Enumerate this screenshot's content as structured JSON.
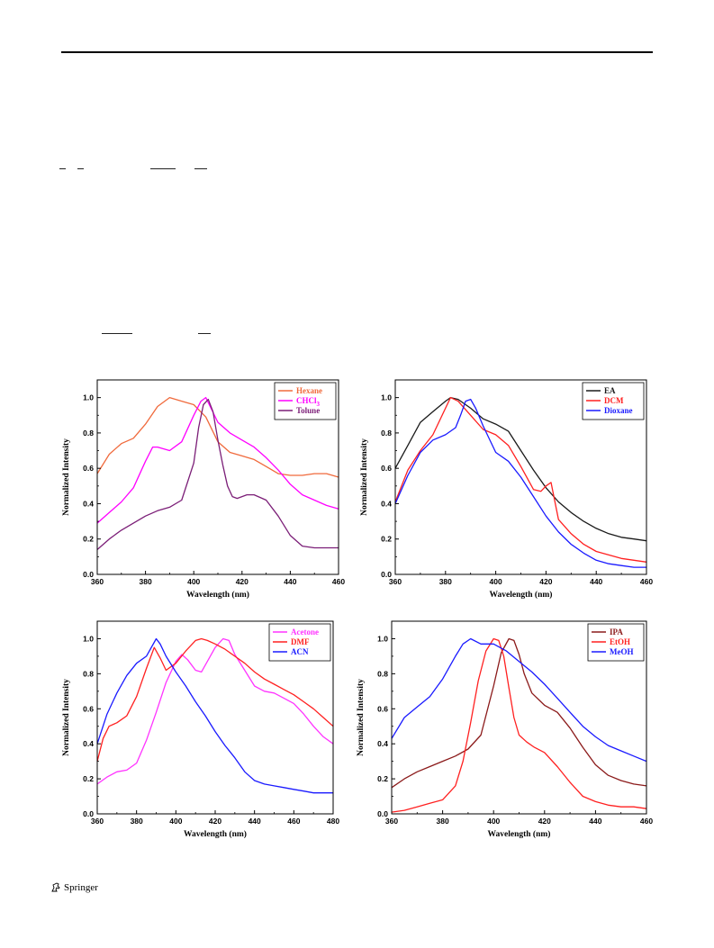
{
  "footer": {
    "publisher": "Springer",
    "logo_icon": "springer-horse-icon"
  },
  "colors": {
    "axis": "#000000",
    "frame": "#000000"
  },
  "chart_data": [
    {
      "type": "line",
      "xlabel": "Wavelength (nm)",
      "ylabel": "Normalized Intensity",
      "xlim": [
        360,
        460
      ],
      "ylim": [
        0.0,
        1.1
      ],
      "xticks": [
        360,
        380,
        400,
        420,
        440,
        460
      ],
      "yticks": [
        0.0,
        0.2,
        0.4,
        0.6,
        0.8,
        1.0
      ],
      "legend": "top-right",
      "series": [
        {
          "name": "Hexane",
          "color": "#f06a3c",
          "x": [
            360,
            365,
            370,
            375,
            380,
            385,
            390,
            395,
            400,
            405,
            410,
            415,
            420,
            425,
            430,
            435,
            440,
            445,
            450,
            455,
            460
          ],
          "y": [
            0.57,
            0.68,
            0.74,
            0.77,
            0.85,
            0.95,
            1.0,
            0.98,
            0.96,
            0.89,
            0.75,
            0.69,
            0.67,
            0.65,
            0.61,
            0.57,
            0.56,
            0.56,
            0.57,
            0.57,
            0.55
          ]
        },
        {
          "name": "CHCl3",
          "color": "#ff00ff",
          "x": [
            360,
            365,
            370,
            375,
            380,
            383,
            385,
            390,
            395,
            400,
            403,
            405,
            410,
            415,
            420,
            425,
            430,
            435,
            440,
            445,
            450,
            455,
            460
          ],
          "y": [
            0.29,
            0.35,
            0.41,
            0.49,
            0.64,
            0.72,
            0.72,
            0.7,
            0.75,
            0.9,
            0.98,
            1.0,
            0.86,
            0.8,
            0.76,
            0.72,
            0.66,
            0.59,
            0.51,
            0.45,
            0.42,
            0.39,
            0.37
          ]
        },
        {
          "name": "Tolune",
          "color": "#7b1e77",
          "x": [
            360,
            365,
            370,
            375,
            380,
            385,
            390,
            395,
            400,
            402,
            404,
            406,
            408,
            410,
            412,
            414,
            416,
            418,
            420,
            422,
            425,
            430,
            435,
            440,
            445,
            450,
            455,
            460
          ],
          "y": [
            0.14,
            0.2,
            0.25,
            0.29,
            0.33,
            0.36,
            0.38,
            0.42,
            0.63,
            0.83,
            0.96,
            0.99,
            0.92,
            0.76,
            0.62,
            0.5,
            0.44,
            0.43,
            0.44,
            0.45,
            0.45,
            0.42,
            0.33,
            0.22,
            0.16,
            0.15,
            0.15,
            0.15
          ]
        }
      ]
    },
    {
      "type": "line",
      "xlabel": "Wavelength (nm)",
      "ylabel": "Normalized Intensity",
      "xlim": [
        360,
        460
      ],
      "ylim": [
        0.0,
        1.1
      ],
      "xticks": [
        360,
        380,
        400,
        420,
        440,
        460
      ],
      "yticks": [
        0.0,
        0.2,
        0.4,
        0.6,
        0.8,
        1.0
      ],
      "legend": "top-right",
      "series": [
        {
          "name": "EA",
          "color": "#1a1a1a",
          "x": [
            360,
            365,
            370,
            375,
            380,
            382,
            385,
            390,
            395,
            400,
            405,
            410,
            415,
            420,
            425,
            430,
            435,
            440,
            445,
            450,
            455,
            460
          ],
          "y": [
            0.6,
            0.73,
            0.86,
            0.92,
            0.98,
            1.0,
            0.99,
            0.94,
            0.88,
            0.85,
            0.81,
            0.7,
            0.59,
            0.49,
            0.41,
            0.35,
            0.3,
            0.26,
            0.23,
            0.21,
            0.2,
            0.19
          ]
        },
        {
          "name": "DCM",
          "color": "#ff2020",
          "x": [
            360,
            365,
            370,
            375,
            380,
            382,
            385,
            390,
            395,
            400,
            405,
            410,
            415,
            418,
            420,
            422,
            425,
            430,
            435,
            440,
            445,
            450,
            455,
            460
          ],
          "y": [
            0.41,
            0.59,
            0.7,
            0.79,
            0.94,
            1.0,
            0.98,
            0.9,
            0.82,
            0.79,
            0.73,
            0.61,
            0.48,
            0.47,
            0.5,
            0.52,
            0.31,
            0.23,
            0.17,
            0.13,
            0.11,
            0.09,
            0.08,
            0.07
          ]
        },
        {
          "name": "Dioxane",
          "color": "#1a1aff",
          "x": [
            360,
            365,
            370,
            375,
            380,
            384,
            386,
            388,
            390,
            392,
            395,
            400,
            405,
            410,
            415,
            420,
            425,
            430,
            435,
            440,
            445,
            450,
            455,
            460
          ],
          "y": [
            0.4,
            0.56,
            0.69,
            0.76,
            0.79,
            0.83,
            0.9,
            0.98,
            0.99,
            0.94,
            0.84,
            0.69,
            0.64,
            0.55,
            0.44,
            0.33,
            0.24,
            0.17,
            0.12,
            0.08,
            0.06,
            0.05,
            0.04,
            0.04
          ]
        }
      ]
    },
    {
      "type": "line",
      "xlabel": "Wavelength (nm)",
      "ylabel": "Normalized Intensity",
      "xlim": [
        360,
        480
      ],
      "ylim": [
        0.0,
        1.1
      ],
      "xticks": [
        360,
        380,
        400,
        420,
        440,
        460,
        480
      ],
      "yticks": [
        0.0,
        0.2,
        0.4,
        0.6,
        0.8,
        1.0
      ],
      "legend": "top-right",
      "series": [
        {
          "name": "Acetone",
          "color": "#ff33ff",
          "x": [
            360,
            365,
            370,
            375,
            380,
            385,
            390,
            395,
            400,
            403,
            406,
            410,
            413,
            416,
            420,
            424,
            427,
            430,
            435,
            440,
            445,
            450,
            455,
            460,
            465,
            470,
            475,
            480
          ],
          "y": [
            0.17,
            0.21,
            0.24,
            0.25,
            0.29,
            0.42,
            0.58,
            0.75,
            0.87,
            0.91,
            0.88,
            0.82,
            0.81,
            0.87,
            0.95,
            1.0,
            0.99,
            0.91,
            0.82,
            0.73,
            0.7,
            0.69,
            0.66,
            0.63,
            0.57,
            0.5,
            0.44,
            0.4
          ]
        },
        {
          "name": "DMF",
          "color": "#ff2020",
          "x": [
            360,
            363,
            366,
            370,
            375,
            380,
            385,
            389,
            392,
            395,
            400,
            405,
            410,
            413,
            416,
            420,
            425,
            430,
            435,
            440,
            445,
            450,
            455,
            460,
            465,
            470,
            475,
            480
          ],
          "y": [
            0.3,
            0.43,
            0.5,
            0.52,
            0.56,
            0.67,
            0.83,
            0.95,
            0.89,
            0.82,
            0.86,
            0.93,
            0.99,
            1.0,
            0.99,
            0.97,
            0.94,
            0.9,
            0.86,
            0.81,
            0.77,
            0.74,
            0.71,
            0.68,
            0.64,
            0.6,
            0.55,
            0.5
          ]
        },
        {
          "name": "ACN",
          "color": "#1a1aff",
          "x": [
            360,
            365,
            370,
            375,
            380,
            385,
            390,
            392,
            395,
            400,
            405,
            410,
            415,
            420,
            425,
            430,
            435,
            440,
            445,
            450,
            455,
            460,
            465,
            470,
            475,
            480
          ],
          "y": [
            0.4,
            0.57,
            0.69,
            0.79,
            0.86,
            0.9,
            1.0,
            0.97,
            0.9,
            0.81,
            0.73,
            0.64,
            0.56,
            0.47,
            0.39,
            0.32,
            0.24,
            0.19,
            0.17,
            0.16,
            0.15,
            0.14,
            0.13,
            0.12,
            0.12,
            0.12
          ]
        }
      ]
    },
    {
      "type": "line",
      "xlabel": "Wavelength (nm)",
      "ylabel": "Normalized Intensity",
      "xlim": [
        360,
        460
      ],
      "ylim": [
        0.0,
        1.1
      ],
      "xticks": [
        360,
        380,
        400,
        420,
        440,
        460
      ],
      "yticks": [
        0.0,
        0.2,
        0.4,
        0.6,
        0.8,
        1.0
      ],
      "legend": "top-right",
      "series": [
        {
          "name": "IPA",
          "color": "#8b1a1a",
          "x": [
            360,
            365,
            370,
            375,
            380,
            385,
            390,
            395,
            400,
            403,
            406,
            408,
            410,
            412,
            415,
            420,
            425,
            430,
            435,
            440,
            445,
            450,
            455,
            460
          ],
          "y": [
            0.15,
            0.2,
            0.24,
            0.27,
            0.3,
            0.33,
            0.37,
            0.45,
            0.73,
            0.92,
            1.0,
            0.99,
            0.91,
            0.8,
            0.69,
            0.62,
            0.58,
            0.49,
            0.38,
            0.28,
            0.22,
            0.19,
            0.17,
            0.16
          ]
        },
        {
          "name": "EtOH",
          "color": "#ff2020",
          "x": [
            360,
            365,
            370,
            375,
            380,
            385,
            388,
            391,
            394,
            397,
            400,
            402,
            404,
            406,
            408,
            410,
            413,
            416,
            420,
            425,
            430,
            435,
            440,
            445,
            450,
            455,
            460
          ],
          "y": [
            0.01,
            0.02,
            0.04,
            0.06,
            0.08,
            0.16,
            0.3,
            0.52,
            0.76,
            0.93,
            1.0,
            0.99,
            0.9,
            0.72,
            0.55,
            0.45,
            0.41,
            0.38,
            0.35,
            0.27,
            0.18,
            0.1,
            0.07,
            0.05,
            0.04,
            0.04,
            0.03
          ]
        },
        {
          "name": "MeOH",
          "color": "#1a1aff",
          "x": [
            360,
            365,
            370,
            375,
            380,
            385,
            388,
            391,
            395,
            400,
            405,
            410,
            415,
            420,
            425,
            430,
            435,
            440,
            445,
            450,
            455,
            460
          ],
          "y": [
            0.43,
            0.55,
            0.61,
            0.67,
            0.77,
            0.9,
            0.97,
            1.0,
            0.97,
            0.97,
            0.93,
            0.87,
            0.81,
            0.74,
            0.66,
            0.58,
            0.5,
            0.44,
            0.39,
            0.36,
            0.33,
            0.3
          ]
        }
      ]
    }
  ]
}
